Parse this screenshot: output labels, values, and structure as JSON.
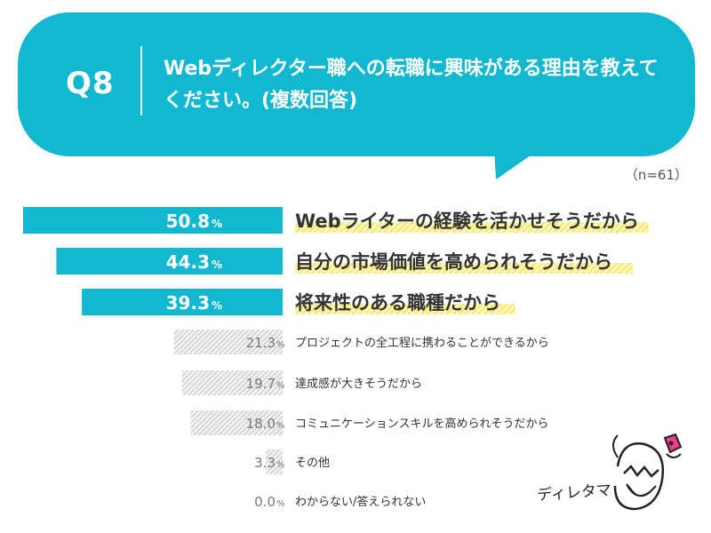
{
  "question": {
    "number": "Q8",
    "text": "Webディレクター職への転職に興味がある理由を教えてください。(複数回答)"
  },
  "sample_size": "（n=61）",
  "mascot": {
    "name": "ディレタマ",
    "icon": "egg-character-icon"
  },
  "colors": {
    "accent": "#12b8d0",
    "highlight": "#f4e94a",
    "hatch": "#bdbdbd"
  },
  "chart_data": {
    "type": "bar",
    "orientation": "horizontal",
    "unit": "%",
    "categories": [
      "Webライターの経験を活かせそうだから",
      "自分の市場価値を高められそうだから",
      "将来性のある職種だから",
      "プロジェクトの全工程に携わることができるから",
      "達成感が大きそうだから",
      "コミュニケーションスキルを高められそうだから",
      "その他",
      "わからない/答えられない"
    ],
    "values": [
      50.8,
      44.3,
      39.3,
      21.3,
      19.7,
      18.0,
      3.3,
      0.0
    ],
    "value_labels": [
      "50.8",
      "44.3",
      "39.3",
      "21.3",
      "19.7",
      "18.0",
      "3.3",
      "0.0"
    ],
    "highlighted_top": 3,
    "xlim": [
      0,
      50.8
    ]
  }
}
